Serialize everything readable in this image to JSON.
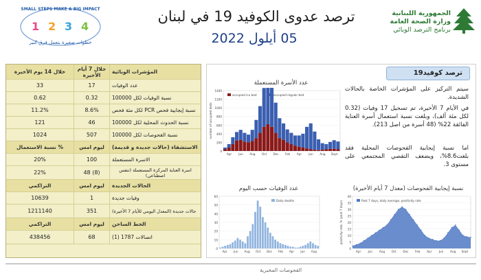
{
  "header": {
    "title": "ترصد عدوى الكوفيد 19 في لبنان",
    "date": "05 أيلول 2022",
    "ministry_line1": "الجمهورية اللبنانية",
    "ministry_line2": "وزارة الصحة العامة",
    "ministry_line3": "برنامج الترصد الوبائي",
    "campaign_title": "SMALL STEPS MAKE A BIG IMPACT",
    "campaign_sub": "خطوات صغيرة بتعمل فرق كبير",
    "campaign_numbers": [
      "1",
      "2",
      "3",
      "4"
    ]
  },
  "table": {
    "head": {
      "indicator": "المؤشرات الوبائية",
      "last7": "خلال 7 أيام الأخيرة",
      "last14": "خلال 14 يوم الأخيرة"
    },
    "rows": [
      {
        "label": "عدد الوفيات",
        "v7": "17",
        "v14": "33"
      },
      {
        "label": "نسبة الوفيات لكل 100000",
        "v7": "0.32",
        "v14": "0.62"
      },
      {
        "label": "نسبة إيجابية فحص PCR لكل مئة فحص",
        "v7": "8.6%",
        "v14": "11.2%"
      },
      {
        "label": "نسبة الحدوث المحلية لكل 100000",
        "v7": "46",
        "v14": "121"
      },
      {
        "label": "نسبة الفحوصات لكل 100000",
        "v7": "507",
        "v14": "1024"
      }
    ],
    "hosp_head": {
      "label": "الاستشفاء (حالات جديدة و قديمة)",
      "today": "ليوم امس",
      "pct": "% نسبة الاستعمال"
    },
    "hosp_rows": [
      {
        "label": "الاسرة المستعملة",
        "today": "100",
        "pct": "20%"
      },
      {
        "label": "اسرة العناية المركزة المستعملة (تنفس اصطناعي)",
        "today": "(8) 48",
        "pct": "22%"
      }
    ],
    "new_head": {
      "label": "الحالات الجديدة",
      "today": "ليوم امس",
      "cum": "التراكمي"
    },
    "new_rows": [
      {
        "label": "وفيات جديدة",
        "today": "1",
        "cum": "10639"
      },
      {
        "label": "حالات جديدة (المعدل اليومي للأيام 7 الأخيرة)",
        "today": "351",
        "cum": "1211140"
      }
    ],
    "hotline_head": {
      "label": "الخط الساخن",
      "today": "ليوم امس",
      "cum": "التراكمي"
    },
    "hotline_rows": [
      {
        "label": "اتصالات 1787 (1)",
        "today": "68",
        "cum": "438456"
      }
    ]
  },
  "panel": {
    "badge": "ترصد كوفيد19",
    "p1": "سيتم التركيز على المؤشرات الخاصة بالحالات الشديدة.",
    "p2": "في الأيام 7 الأخيرة، تم تسجيل 17 وفيات (0.32 لكل مئة ألف)، وبلغت نسبة استعمال أسرة العناية الفائقة 22% (48 أسرة من اصل 213).",
    "p3": "اما نسبة إيجابية الفحوصات المحلية فقد بلغت8.6%، ويضعف التقصي المجتمعي على مستوى 3."
  },
  "chart_data": [
    {
      "type": "bar",
      "title": "عدد الأسرة المستعملة",
      "ylabel": "number of occupied beds",
      "ylim": [
        0,
        1400
      ],
      "y_ticks": [
        "0",
        "200",
        "400",
        "600",
        "800",
        "1000",
        "1200",
        "1400"
      ],
      "x_ticks": [
        "Apr",
        "Jun",
        "Aug",
        "Oct",
        "Dec",
        "Feb",
        "Apr",
        "Jun",
        "Aug",
        "Sept"
      ],
      "legend": [
        "occupied icu bed",
        "occupied regular bed"
      ],
      "colors": {
        "icu": "#8b1a1a",
        "regular": "#3b5fb0"
      },
      "series": [
        {
          "name": "occupied icu bed",
          "values": [
            40,
            80,
            160,
            240,
            260,
            220,
            200,
            230,
            300,
            420,
            560,
            620,
            560,
            420,
            300,
            260,
            200,
            160,
            120,
            100,
            80,
            60,
            40,
            30,
            20,
            30,
            40,
            50,
            50,
            40
          ]
        },
        {
          "name": "occupied regular bed",
          "values": [
            40,
            80,
            160,
            200,
            230,
            200,
            180,
            260,
            420,
            620,
            900,
            1100,
            980,
            700,
            460,
            380,
            300,
            260,
            240,
            260,
            320,
            500,
            600,
            420,
            250,
            150,
            120,
            160,
            200,
            180
          ]
        }
      ]
    },
    {
      "type": "bar",
      "title": "عدد الوفيات حسب اليوم",
      "ylim": [
        0,
        60
      ],
      "y_ticks": [
        "0",
        "10",
        "20",
        "30",
        "40",
        "50",
        "60"
      ],
      "x_ticks": [
        "Apr",
        "Jun",
        "Aug",
        "Oct",
        "Dec",
        "Feb",
        "Apr",
        "Jun",
        "Aug"
      ],
      "legend": [
        "Daily deaths"
      ],
      "colors": {
        "bars": "#8fb3de"
      },
      "values": [
        1,
        2,
        3,
        4,
        5,
        7,
        9,
        12,
        10,
        8,
        6,
        14,
        20,
        28,
        42,
        55,
        48,
        36,
        30,
        24,
        18,
        14,
        10,
        8,
        6,
        5,
        4,
        3,
        2,
        2,
        1,
        1,
        2,
        3,
        4,
        6,
        8,
        6,
        4,
        3
      ]
    },
    {
      "type": "area",
      "title": "نسبة إيجابية الفحوصات (معدل 7 أيام الأخيرة)",
      "ylabel": "positivity rate, % (past 7 days)",
      "ylim": [
        0,
        40
      ],
      "y_ticks": [
        "0",
        "5",
        "10",
        "15",
        "20",
        "25",
        "30",
        "35",
        "40"
      ],
      "x_ticks": [
        "Apr",
        "Jun",
        "Aug",
        "Oct",
        "Dec",
        "Feb",
        "Apr",
        "Jun",
        "Aug",
        "Sept"
      ],
      "legend": [
        "Past 7 days, daily average, positivity rate"
      ],
      "colors": {
        "area": "#4f79c4"
      },
      "values": [
        2,
        3,
        4,
        6,
        8,
        10,
        12,
        14,
        16,
        18,
        22,
        26,
        30,
        32,
        30,
        26,
        22,
        18,
        14,
        10,
        8,
        7,
        6,
        6,
        8,
        12,
        16,
        18,
        14,
        10,
        9,
        8.6
      ]
    }
  ],
  "bottom": {
    "label": "الفحوصات المخبرية"
  }
}
